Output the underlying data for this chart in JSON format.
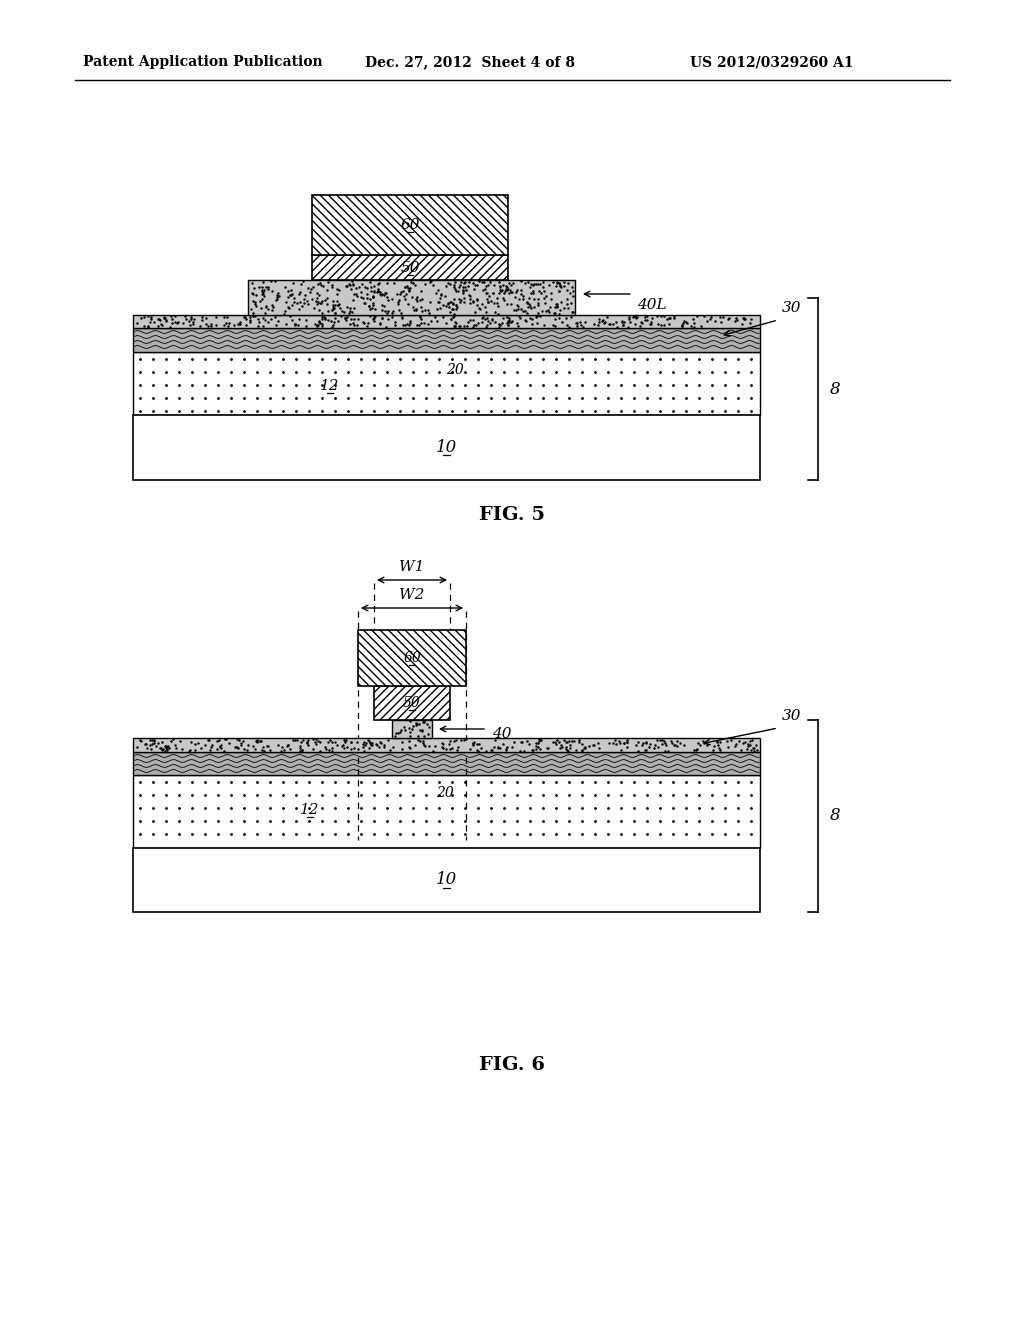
{
  "header_left": "Patent Application Publication",
  "header_mid": "Dec. 27, 2012  Sheet 4 of 8",
  "header_right": "US 2012/0329260 A1",
  "fig5_label": "FIG. 5",
  "fig6_label": "FIG. 6",
  "bg_color": "#ffffff",
  "fig5": {
    "substrate_label": "10",
    "dielectric_label": "12",
    "graphene_label": "20",
    "topox_label": "30",
    "gate_dielectric_label": "40L",
    "gate_metal_label": "50",
    "hardmask_label": "60",
    "brace_label": "8"
  },
  "fig6": {
    "substrate_label": "10",
    "dielectric_label": "12",
    "graphene_label": "20",
    "topox_label": "30",
    "gate_dielectric_label": "40",
    "gate_metal_label": "50",
    "hardmask_label": "60",
    "brace_label": "8",
    "w1_label": "W1",
    "w2_label": "W2"
  }
}
